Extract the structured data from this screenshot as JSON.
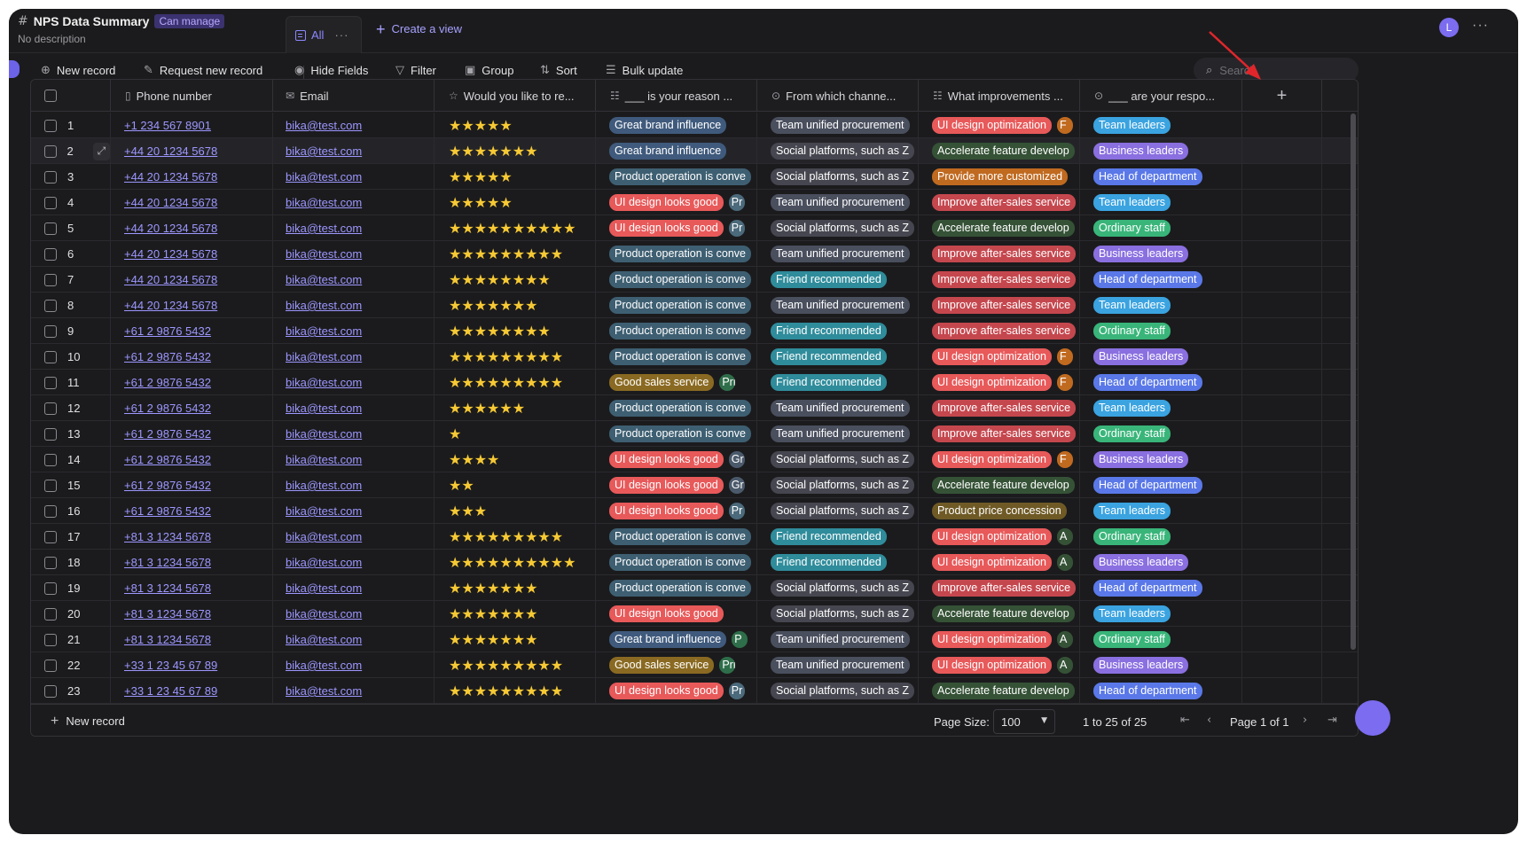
{
  "header": {
    "title": "NPS Data Summary",
    "permission": "Can manage",
    "description": "No description",
    "view_tab": "All",
    "create_view": "Create a view",
    "avatar_letter": "L"
  },
  "toolbar": {
    "new_record": "New record",
    "request_new_record": "Request new record",
    "hide_fields": "Hide Fields",
    "filter": "Filter",
    "group": "Group",
    "sort": "Sort",
    "bulk_update": "Bulk update",
    "search_placeholder": "Search"
  },
  "columns": [
    {
      "label": "Phone number",
      "icon": "phone-icon"
    },
    {
      "label": "Email",
      "icon": "email-icon"
    },
    {
      "label": "Would you like to re...",
      "icon": "star-icon"
    },
    {
      "label": "___ is your reason ...",
      "icon": "multiselect-icon"
    },
    {
      "label": "From which channe...",
      "icon": "singleselect-icon"
    },
    {
      "label": "What improvements ...",
      "icon": "multiselect-icon"
    },
    {
      "label": "___ are your respo...",
      "icon": "singleselect-icon"
    }
  ],
  "tag_colors": {
    "Great brand influence": "#3f5a7c",
    "Product operation is conve": "#3e5f72",
    "UI design looks good": "#e8595a",
    "Good sales service": "#8a6a22",
    "Team unified procurement": "#4a4f5e",
    "Social platforms, such as Z": "#464650",
    "Friend recommended": "#2f8c9b",
    "UI design optimization": "#e8595a",
    "Accelerate feature develop": "#355236",
    "Provide more customized": "#c06a20",
    "Improve after-sales service": "#c5474e",
    "Product price concession": "#6f5a26",
    "Team leaders": "#3aa3e0",
    "Business leaders": "#8a6fe0",
    "Head of department": "#5a78e8",
    "Ordinary staff": "#39b57a"
  },
  "extra_tag_colors": {
    "Pr": "#4b6a7b",
    "Gr": "#4b5a6b",
    "P": "#2f6e4a",
    "Pric": "#2f6e4a",
    "F": "#c06a20",
    "A": "#355236"
  },
  "rows": [
    {
      "n": "1",
      "phone": "+1 234 567 8901",
      "email": "bika@test.com",
      "stars": 5,
      "reason": [
        "Great brand influence"
      ],
      "channel": "Team unified procurement",
      "improve": [
        "UI design optimization",
        "F"
      ],
      "pos": "Team leaders"
    },
    {
      "n": "2",
      "phone": "+44 20 1234 5678",
      "email": "bika@test.com",
      "stars": 7,
      "reason": [
        "Great brand influence"
      ],
      "channel": "Social platforms, such as Z",
      "improve": [
        "Accelerate feature develop"
      ],
      "pos": "Business leaders"
    },
    {
      "n": "3",
      "phone": "+44 20 1234 5678",
      "email": "bika@test.com",
      "stars": 5,
      "reason": [
        "Product operation is conve"
      ],
      "channel": "Social platforms, such as Z",
      "improve": [
        "Provide more customized"
      ],
      "pos": "Head of department"
    },
    {
      "n": "4",
      "phone": "+44 20 1234 5678",
      "email": "bika@test.com",
      "stars": 5,
      "reason": [
        "UI design looks good",
        "Pr"
      ],
      "channel": "Team unified procurement",
      "improve": [
        "Improve after-sales service"
      ],
      "pos": "Team leaders"
    },
    {
      "n": "5",
      "phone": "+44 20 1234 5678",
      "email": "bika@test.com",
      "stars": 10,
      "reason": [
        "UI design looks good",
        "Pr"
      ],
      "channel": "Social platforms, such as Z",
      "improve": [
        "Accelerate feature develop"
      ],
      "pos": "Ordinary staff"
    },
    {
      "n": "6",
      "phone": "+44 20 1234 5678",
      "email": "bika@test.com",
      "stars": 9,
      "reason": [
        "Product operation is conve"
      ],
      "channel": "Team unified procurement",
      "improve": [
        "Improve after-sales service"
      ],
      "pos": "Business leaders"
    },
    {
      "n": "7",
      "phone": "+44 20 1234 5678",
      "email": "bika@test.com",
      "stars": 8,
      "reason": [
        "Product operation is conve"
      ],
      "channel": "Friend recommended",
      "improve": [
        "Improve after-sales service"
      ],
      "pos": "Head of department"
    },
    {
      "n": "8",
      "phone": "+44 20 1234 5678",
      "email": "bika@test.com",
      "stars": 7,
      "reason": [
        "Product operation is conve"
      ],
      "channel": "Team unified procurement",
      "improve": [
        "Improve after-sales service"
      ],
      "pos": "Team leaders"
    },
    {
      "n": "9",
      "phone": "+61 2 9876 5432",
      "email": "bika@test.com",
      "stars": 8,
      "reason": [
        "Product operation is conve"
      ],
      "channel": "Friend recommended",
      "improve": [
        "Improve after-sales service"
      ],
      "pos": "Ordinary staff"
    },
    {
      "n": "10",
      "phone": "+61 2 9876 5432",
      "email": "bika@test.com",
      "stars": 9,
      "reason": [
        "Product operation is conve"
      ],
      "channel": "Friend recommended",
      "improve": [
        "UI design optimization",
        "F"
      ],
      "pos": "Business leaders"
    },
    {
      "n": "11",
      "phone": "+61 2 9876 5432",
      "email": "bika@test.com",
      "stars": 9,
      "reason": [
        "Good sales service",
        "Pric"
      ],
      "channel": "Friend recommended",
      "improve": [
        "UI design optimization",
        "F"
      ],
      "pos": "Head of department"
    },
    {
      "n": "12",
      "phone": "+61 2 9876 5432",
      "email": "bika@test.com",
      "stars": 6,
      "reason": [
        "Product operation is conve"
      ],
      "channel": "Team unified procurement",
      "improve": [
        "Improve after-sales service"
      ],
      "pos": "Team leaders"
    },
    {
      "n": "13",
      "phone": "+61 2 9876 5432",
      "email": "bika@test.com",
      "stars": 1,
      "reason": [
        "Product operation is conve"
      ],
      "channel": "Team unified procurement",
      "improve": [
        "Improve after-sales service"
      ],
      "pos": "Ordinary staff"
    },
    {
      "n": "14",
      "phone": "+61 2 9876 5432",
      "email": "bika@test.com",
      "stars": 4,
      "reason": [
        "UI design looks good",
        "Gr"
      ],
      "channel": "Social platforms, such as Z",
      "improve": [
        "UI design optimization",
        "F"
      ],
      "pos": "Business leaders"
    },
    {
      "n": "15",
      "phone": "+61 2 9876 5432",
      "email": "bika@test.com",
      "stars": 2,
      "reason": [
        "UI design looks good",
        "Gr"
      ],
      "channel": "Social platforms, such as Z",
      "improve": [
        "Accelerate feature develop"
      ],
      "pos": "Head of department"
    },
    {
      "n": "16",
      "phone": "+61 2 9876 5432",
      "email": "bika@test.com",
      "stars": 3,
      "reason": [
        "UI design looks good",
        "Pr"
      ],
      "channel": "Social platforms, such as Z",
      "improve": [
        "Product price concession"
      ],
      "pos": "Team leaders"
    },
    {
      "n": "17",
      "phone": "+81 3 1234 5678",
      "email": "bika@test.com",
      "stars": 9,
      "reason": [
        "Product operation is conve"
      ],
      "channel": "Friend recommended",
      "improve": [
        "UI design optimization",
        "A"
      ],
      "pos": "Ordinary staff"
    },
    {
      "n": "18",
      "phone": "+81 3 1234 5678",
      "email": "bika@test.com",
      "stars": 10,
      "reason": [
        "Product operation is conve"
      ],
      "channel": "Friend recommended",
      "improve": [
        "UI design optimization",
        "A"
      ],
      "pos": "Business leaders"
    },
    {
      "n": "19",
      "phone": "+81 3 1234 5678",
      "email": "bika@test.com",
      "stars": 7,
      "reason": [
        "Product operation is conve"
      ],
      "channel": "Social platforms, such as Z",
      "improve": [
        "Improve after-sales service"
      ],
      "pos": "Head of department"
    },
    {
      "n": "20",
      "phone": "+81 3 1234 5678",
      "email": "bika@test.com",
      "stars": 7,
      "reason": [
        "UI design looks good"
      ],
      "channel": "Social platforms, such as Z",
      "improve": [
        "Accelerate feature develop"
      ],
      "pos": "Team leaders"
    },
    {
      "n": "21",
      "phone": "+81 3 1234 5678",
      "email": "bika@test.com",
      "stars": 7,
      "reason": [
        "Great brand influence",
        "P"
      ],
      "channel": "Team unified procurement",
      "improve": [
        "UI design optimization",
        "A"
      ],
      "pos": "Ordinary staff"
    },
    {
      "n": "22",
      "phone": "+33 1 23 45 67 89",
      "email": "bika@test.com",
      "stars": 9,
      "reason": [
        "Good sales service",
        "Pric"
      ],
      "channel": "Team unified procurement",
      "improve": [
        "UI design optimization",
        "A"
      ],
      "pos": "Business leaders"
    },
    {
      "n": "23",
      "phone": "+33 1 23 45 67 89",
      "email": "bika@test.com",
      "stars": 9,
      "reason": [
        "UI design looks good",
        "Pr"
      ],
      "channel": "Social platforms, such as Z",
      "improve": [
        "Accelerate feature develop"
      ],
      "pos": "Head of department"
    }
  ],
  "footer": {
    "new_record": "New record",
    "page_size_label": "Page Size:",
    "page_size_value": "100",
    "range_text": "1 to 25 of 25",
    "page_text": "Page 1 of 1"
  }
}
